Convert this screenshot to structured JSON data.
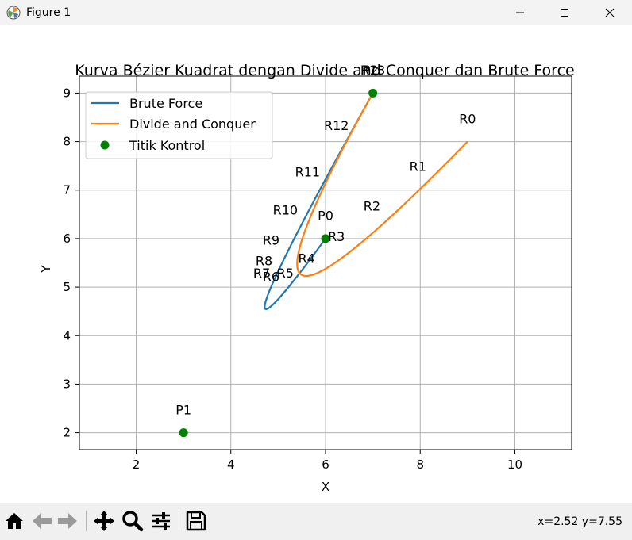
{
  "window": {
    "title": "Figure 1"
  },
  "toolbar": {
    "buttons": [
      "home-icon",
      "back-icon",
      "forward-icon",
      "pan-icon",
      "zoom-icon",
      "configure-icon",
      "save-icon"
    ],
    "coords": "x=2.52 y=7.55"
  },
  "colors": {
    "brute": "#1f77b4",
    "dnc": "#ff7f0e",
    "points": "#008000",
    "grid": "#b0b0b0"
  },
  "chart_data": {
    "type": "line",
    "title": "Kurva Bézier Kuadrat dengan Divide and Conquer dan Brute Force",
    "xlabel": "X",
    "ylabel": "Y",
    "xlim": [
      0.8,
      11.2
    ],
    "ylim": [
      1.65,
      9.35
    ],
    "xticks": [
      2,
      4,
      6,
      8,
      10
    ],
    "yticks": [
      2,
      3,
      4,
      5,
      6,
      7,
      8,
      9
    ],
    "grid": true,
    "legend_position": "upper-left",
    "series": [
      {
        "name": "Brute Force",
        "kind": "line",
        "color": "#1f77b4",
        "control": [
          [
            6,
            6
          ],
          [
            3,
            2
          ],
          [
            7,
            9
          ]
        ],
        "values": [
          [
            6,
            6
          ],
          [
            5.3,
            5.1
          ],
          [
            4.8,
            4.6
          ],
          [
            4.4,
            4.3
          ],
          [
            4.1,
            4.1
          ],
          [
            4,
            4.1
          ],
          [
            4.3,
            4.7
          ],
          [
            4.7,
            5.4
          ],
          [
            5.2,
            6.2
          ],
          [
            5.9,
            7.3
          ],
          [
            6.5,
            8.2
          ],
          [
            7,
            9
          ]
        ]
      },
      {
        "name": "Divide and Conquer",
        "kind": "line",
        "color": "#ff7f0e",
        "control": [
          [
            9,
            8
          ],
          [
            3,
            2
          ],
          [
            7,
            9
          ]
        ],
        "values": [
          [
            9,
            8
          ],
          [
            8.1,
            7.1
          ],
          [
            7.2,
            6.3
          ],
          [
            6.3,
            5.6
          ],
          [
            5.5,
            5.1
          ],
          [
            4.9,
            4.8
          ],
          [
            4.7,
            4.8
          ],
          [
            4.8,
            5.2
          ],
          [
            5.1,
            5.9
          ],
          [
            5.6,
            6.9
          ],
          [
            6.3,
            7.9
          ],
          [
            7,
            9
          ]
        ]
      },
      {
        "name": "Titik Kontrol",
        "kind": "scatter",
        "color": "#008000",
        "values": [
          [
            6,
            6
          ],
          [
            3,
            2
          ],
          [
            7,
            9
          ]
        ]
      }
    ],
    "annotations": [
      {
        "text": "R0",
        "x": 9.0,
        "y": 8.38
      },
      {
        "text": "R1",
        "x": 7.95,
        "y": 7.4
      },
      {
        "text": "R2",
        "x": 6.98,
        "y": 6.58
      },
      {
        "text": "R3",
        "x": 6.23,
        "y": 5.95
      },
      {
        "text": "R4",
        "x": 5.6,
        "y": 5.5
      },
      {
        "text": "R5",
        "x": 5.15,
        "y": 5.2
      },
      {
        "text": "R6",
        "x": 4.85,
        "y": 5.12
      },
      {
        "text": "R7",
        "x": 4.65,
        "y": 5.2
      },
      {
        "text": "R8",
        "x": 4.7,
        "y": 5.45
      },
      {
        "text": "R9",
        "x": 4.85,
        "y": 5.88
      },
      {
        "text": "R10",
        "x": 5.15,
        "y": 6.5
      },
      {
        "text": "R11",
        "x": 5.62,
        "y": 7.28
      },
      {
        "text": "R12",
        "x": 6.23,
        "y": 8.24
      },
      {
        "text": "R13",
        "x": 7.0,
        "y": 9.38
      },
      {
        "text": "P2",
        "x": 6.95,
        "y": 9.38
      },
      {
        "text": "P0",
        "x": 6.0,
        "y": 6.38
      },
      {
        "text": "P1",
        "x": 3.0,
        "y": 2.38
      }
    ]
  }
}
